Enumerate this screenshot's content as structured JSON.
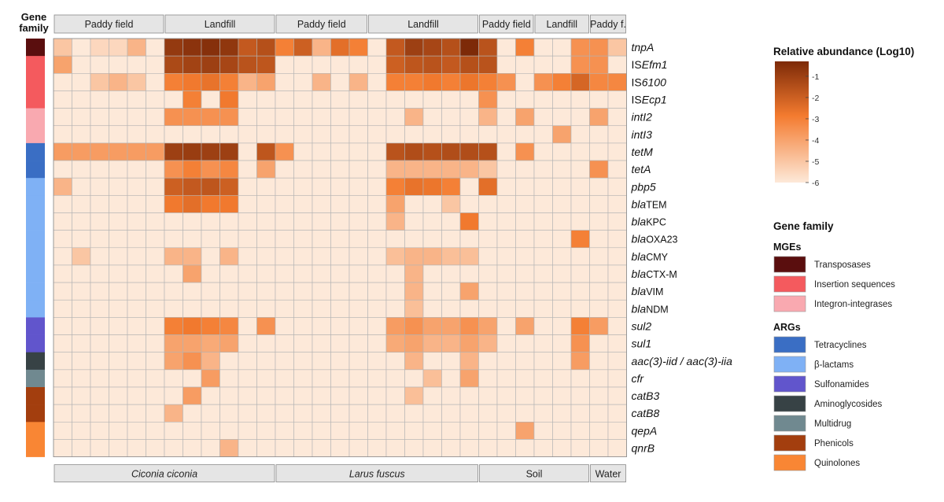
{
  "chart_data": {
    "type": "heatmap",
    "gene_family_header": [
      "Gene",
      "family"
    ],
    "habitats": [
      {
        "label": "Paddy field",
        "span": 6
      },
      {
        "label": "Landfill",
        "span": 6
      },
      {
        "label": "Paddy field",
        "span": 5
      },
      {
        "label": "Landfill",
        "span": 6
      },
      {
        "label": "Paddy field",
        "span": 3
      },
      {
        "label": "Landfill",
        "span": 3
      },
      {
        "label": "Paddy f.",
        "span": 2
      }
    ],
    "species": [
      {
        "label": "Ciconia ciconia",
        "span": 12,
        "italic": true
      },
      {
        "label": "Larus fuscus",
        "span": 11,
        "italic": true
      },
      {
        "label": "Soil",
        "span": 6,
        "italic": false
      },
      {
        "label": "Water",
        "span": 2,
        "italic": false
      }
    ],
    "rows": [
      {
        "segments": [
          [
            "tnpA",
            true
          ]
        ],
        "family": "Transposases",
        "values": [
          -5,
          -6,
          -5.5,
          -5.5,
          -4.5,
          -6,
          -0.8,
          -0.6,
          -0.5,
          -0.7,
          -1.8,
          -1.5,
          -3,
          -2,
          -4.5,
          -2.5,
          -3,
          -6,
          -1.8,
          -1,
          -1.2,
          -1.5,
          -0.3,
          -1.6,
          -6,
          -3,
          -6,
          -6,
          -3.5,
          -3.5,
          -5
        ]
      },
      {
        "segments": [
          [
            "IS",
            false
          ],
          [
            "Efm1",
            true
          ]
        ],
        "family": "Insertion sequences",
        "values": [
          -4,
          -6,
          -6,
          -6,
          -6,
          -6,
          -1.3,
          -1.1,
          -1,
          -1.2,
          -1.6,
          -1.7,
          -6,
          -6,
          -6,
          -6,
          -6,
          -6,
          -2,
          -1.7,
          -1.6,
          -1.8,
          -1.5,
          -1.6,
          -6,
          -6,
          -6,
          -6,
          -3.5,
          -3.5,
          -6
        ]
      },
      {
        "segments": [
          [
            "IS",
            false
          ],
          [
            "6100",
            true
          ]
        ],
        "family": "Insertion sequences",
        "values": [
          -6,
          -6,
          -5,
          -4.5,
          -5,
          -6,
          -3,
          -2.8,
          -2.6,
          -3,
          -4.5,
          -4,
          -6,
          -6,
          -4.5,
          -6,
          -4.5,
          -6,
          -3,
          -3,
          -2.8,
          -3,
          -2.7,
          -3,
          -3.5,
          -6,
          -3.5,
          -3,
          -2.2,
          -3.2,
          -3.2
        ]
      },
      {
        "segments": [
          [
            "IS",
            false
          ],
          [
            "Ecp1",
            true
          ]
        ],
        "family": "Insertion sequences",
        "values": [
          -6,
          -6,
          -6,
          -6,
          -6,
          -6,
          -6,
          -3,
          -6,
          -2.8,
          -6,
          -6,
          -6,
          -6,
          -6,
          -6,
          -6,
          -6,
          -6,
          -6,
          -6,
          -6,
          -6,
          -3.5,
          -6,
          -6,
          -6,
          -6,
          -6,
          -6,
          -6
        ]
      },
      {
        "segments": [
          [
            "intI2",
            true
          ]
        ],
        "family": "Integron-integrases",
        "values": [
          -6,
          -6,
          -6,
          -6,
          -6,
          -6,
          -3.5,
          -3.5,
          -3.5,
          -3.5,
          -6,
          -6,
          -6,
          -6,
          -6,
          -6,
          -6,
          -6,
          -6,
          -4.5,
          -6,
          -6,
          -6,
          -4.5,
          -6,
          -4,
          -6,
          -6,
          -6,
          -4,
          -6
        ]
      },
      {
        "segments": [
          [
            "intI3",
            true
          ]
        ],
        "family": "Integron-integrases",
        "values": [
          -6,
          -6,
          -6,
          -6,
          -6,
          -6,
          -6,
          -6,
          -6,
          -6,
          -6,
          -6,
          -6,
          -6,
          -6,
          -6,
          -6,
          -6,
          -6,
          -6,
          -6,
          -6,
          -6,
          -6,
          -6,
          -6,
          -6,
          -4,
          -6,
          -6,
          -6
        ]
      },
      {
        "segments": [
          [
            "tetM",
            true
          ]
        ],
        "family": "Tetracyclines",
        "values": [
          -3.8,
          -3.8,
          -3.8,
          -3.8,
          -3.8,
          -3.8,
          -1,
          -0.9,
          -1,
          -1,
          -6,
          -1.7,
          -3.5,
          -6,
          -6,
          -6,
          -6,
          -6,
          -1.6,
          -1.4,
          -1.5,
          -1.4,
          -1.4,
          -1.5,
          -6,
          -3.5,
          -6,
          -6,
          -6,
          -6,
          -6
        ]
      },
      {
        "segments": [
          [
            "tetA",
            true
          ]
        ],
        "family": "Tetracyclines",
        "values": [
          -6,
          -6,
          -6,
          -6,
          -6,
          -6,
          -3.5,
          -3,
          -3.5,
          -3.2,
          -6,
          -4,
          -6,
          -6,
          -6,
          -6,
          -6,
          -6,
          -4.5,
          -4.5,
          -4.5,
          -4.5,
          -4.5,
          -5,
          -6,
          -6,
          -6,
          -6,
          -6,
          -3.5,
          -6
        ]
      },
      {
        "segments": [
          [
            "pbp5",
            true
          ]
        ],
        "family": "β-lactams",
        "values": [
          -4.5,
          -6,
          -6,
          -6,
          -6,
          -6,
          -2,
          -1.8,
          -1.7,
          -2,
          -6,
          -6,
          -6,
          -6,
          -6,
          -6,
          -6,
          -6,
          -3,
          -2.6,
          -2.7,
          -3,
          -6,
          -2.5,
          -6,
          -6,
          -6,
          -6,
          -6,
          -6,
          -6
        ]
      },
      {
        "segments": [
          [
            "bla",
            true
          ],
          [
            "TEM",
            false
          ]
        ],
        "family": "β-lactams",
        "values": [
          -6,
          -6,
          -6,
          -6,
          -6,
          -6,
          -2.8,
          -2.5,
          -2.8,
          -2.8,
          -6,
          -6,
          -6,
          -6,
          -6,
          -6,
          -6,
          -6,
          -4,
          -6,
          -6,
          -5,
          -6,
          -6,
          -6,
          -6,
          -6,
          -6,
          -6,
          -6,
          -6
        ]
      },
      {
        "segments": [
          [
            "bla",
            true
          ],
          [
            "KPC",
            false
          ]
        ],
        "family": "β-lactams",
        "values": [
          -6,
          -6,
          -6,
          -6,
          -6,
          -6,
          -6,
          -6,
          -6,
          -6,
          -6,
          -6,
          -6,
          -6,
          -6,
          -6,
          -6,
          -6,
          -4.5,
          -6,
          -6,
          -6,
          -2.8,
          -6,
          -6,
          -6,
          -6,
          -6,
          -6,
          -6,
          -6
        ]
      },
      {
        "segments": [
          [
            "bla",
            true
          ],
          [
            "OXA23",
            false
          ]
        ],
        "family": "β-lactams",
        "values": [
          -6,
          -6,
          -6,
          -6,
          -6,
          -6,
          -6,
          -6,
          -6,
          -6,
          -6,
          -6,
          -6,
          -6,
          -6,
          -6,
          -6,
          -6,
          -6,
          -6,
          -6,
          -6,
          -6,
          -6,
          -6,
          -6,
          -6,
          -6,
          -3,
          -6,
          -6
        ]
      },
      {
        "segments": [
          [
            "bla",
            true
          ],
          [
            "CMY",
            false
          ]
        ],
        "family": "β-lactams",
        "values": [
          -6,
          -5,
          -6,
          -6,
          -6,
          -6,
          -4.5,
          -4.5,
          -6,
          -4.5,
          -6,
          -6,
          -6,
          -6,
          -6,
          -6,
          -6,
          -6,
          -4.8,
          -4.5,
          -4.5,
          -4.8,
          -4.8,
          -6,
          -6,
          -6,
          -6,
          -6,
          -6,
          -6,
          -6
        ]
      },
      {
        "segments": [
          [
            "bla",
            true
          ],
          [
            "CTX-M",
            false
          ]
        ],
        "family": "β-lactams",
        "values": [
          -6,
          -6,
          -6,
          -6,
          -6,
          -6,
          -6,
          -4,
          -6,
          -6,
          -6,
          -6,
          -6,
          -6,
          -6,
          -6,
          -6,
          -6,
          -6,
          -4.5,
          -6,
          -6,
          -6,
          -6,
          -6,
          -6,
          -6,
          -6,
          -6,
          -6,
          -6
        ]
      },
      {
        "segments": [
          [
            "bla",
            true
          ],
          [
            "VIM",
            false
          ]
        ],
        "family": "β-lactams",
        "values": [
          -6,
          -6,
          -6,
          -6,
          -6,
          -6,
          -6,
          -6,
          -6,
          -6,
          -6,
          -6,
          -6,
          -6,
          -6,
          -6,
          -6,
          -6,
          -6,
          -4.5,
          -6,
          -6,
          -4,
          -6,
          -6,
          -6,
          -6,
          -6,
          -6,
          -6,
          -6
        ]
      },
      {
        "segments": [
          [
            "bla",
            true
          ],
          [
            "NDM",
            false
          ]
        ],
        "family": "β-lactams",
        "values": [
          -6,
          -6,
          -6,
          -6,
          -6,
          -6,
          -6,
          -6,
          -6,
          -6,
          -6,
          -6,
          -6,
          -6,
          -6,
          -6,
          -6,
          -6,
          -6,
          -4.8,
          -6,
          -6,
          -6,
          -6,
          -6,
          -6,
          -6,
          -6,
          -6,
          -6,
          -6
        ]
      },
      {
        "segments": [
          [
            "sul2",
            true
          ]
        ],
        "family": "Sulfonamides",
        "values": [
          -6,
          -6,
          -6,
          -6,
          -6,
          -6,
          -3,
          -2.8,
          -3,
          -3.2,
          -6,
          -3.5,
          -6,
          -6,
          -6,
          -6,
          -6,
          -6,
          -3.8,
          -3.5,
          -4,
          -4,
          -3.5,
          -4,
          -6,
          -4,
          -6,
          -6,
          -3,
          -3.8,
          -6
        ]
      },
      {
        "segments": [
          [
            "sul1",
            true
          ]
        ],
        "family": "Sulfonamides",
        "values": [
          -6,
          -6,
          -6,
          -6,
          -6,
          -6,
          -4,
          -4,
          -4.2,
          -4,
          -6,
          -6,
          -6,
          -6,
          -6,
          -6,
          -6,
          -6,
          -4.2,
          -4,
          -4.5,
          -4.5,
          -4,
          -4.5,
          -6,
          -6,
          -6,
          -6,
          -3.5,
          -6,
          -6
        ]
      },
      {
        "segments": [
          [
            "aac(3)-iid / aac(3)-iia",
            true
          ]
        ],
        "family": "Aminoglycosides",
        "values": [
          -6,
          -6,
          -6,
          -6,
          -6,
          -6,
          -4,
          -3.5,
          -4.5,
          -6,
          -6,
          -6,
          -6,
          -6,
          -6,
          -6,
          -6,
          -6,
          -6,
          -4.5,
          -6,
          -6,
          -4.5,
          -6,
          -6,
          -6,
          -6,
          -6,
          -3.8,
          -6,
          -6
        ]
      },
      {
        "segments": [
          [
            "cfr",
            true
          ]
        ],
        "family": "Multidrug",
        "values": [
          -6,
          -6,
          -6,
          -6,
          -6,
          -6,
          -6,
          -6,
          -3.8,
          -6,
          -6,
          -6,
          -6,
          -6,
          -6,
          -6,
          -6,
          -6,
          -6,
          -6,
          -4.8,
          -6,
          -4,
          -6,
          -6,
          -6,
          -6,
          -6,
          -6,
          -6,
          -6
        ]
      },
      {
        "segments": [
          [
            "catB3",
            true
          ]
        ],
        "family": "Phenicols",
        "values": [
          -6,
          -6,
          -6,
          -6,
          -6,
          -6,
          -6,
          -3.8,
          -6,
          -6,
          -6,
          -6,
          -6,
          -6,
          -6,
          -6,
          -6,
          -6,
          -6,
          -4.8,
          -6,
          -6,
          -6,
          -6,
          -6,
          -6,
          -6,
          -6,
          -6,
          -6,
          -6
        ]
      },
      {
        "segments": [
          [
            "catB8",
            true
          ]
        ],
        "family": "Phenicols",
        "values": [
          -6,
          -6,
          -6,
          -6,
          -6,
          -6,
          -4.5,
          -6,
          -6,
          -6,
          -6,
          -6,
          -6,
          -6,
          -6,
          -6,
          -6,
          -6,
          -6,
          -6,
          -6,
          -6,
          -6,
          -6,
          -6,
          -6,
          -6,
          -6,
          -6,
          -6,
          -6
        ]
      },
      {
        "segments": [
          [
            "qepA",
            true
          ]
        ],
        "family": "Quinolones",
        "values": [
          -6,
          -6,
          -6,
          -6,
          -6,
          -6,
          -6,
          -6,
          -6,
          -6,
          -6,
          -6,
          -6,
          -6,
          -6,
          -6,
          -6,
          -6,
          -6,
          -6,
          -6,
          -6,
          -6,
          -6,
          -6,
          -4,
          -6,
          -6,
          -6,
          -6,
          -6
        ]
      },
      {
        "segments": [
          [
            "qnrB",
            true
          ]
        ],
        "family": "Quinolones",
        "values": [
          -6,
          -6,
          -6,
          -6,
          -6,
          -6,
          -6,
          -6,
          -6,
          -4.5,
          -6,
          -6,
          -6,
          -6,
          -6,
          -6,
          -6,
          -6,
          -6,
          -6,
          -6,
          -6,
          -6,
          -6,
          -6,
          -6,
          -6,
          -6,
          -6,
          -6,
          -6
        ]
      }
    ],
    "color_scale": {
      "title": "Relative abundance (Log10)",
      "min": -6,
      "max": -0.3,
      "ticks": [
        -1,
        -2,
        -3,
        -4,
        -5,
        -6
      ],
      "tick_labels": [
        "-1",
        "-2",
        "-3",
        "-4",
        "-5",
        "-6"
      ],
      "low_color": "#fde9d9",
      "mid_color": "#f47b2f",
      "high_color": "#7d2a08"
    },
    "legend": {
      "title": "Gene family",
      "groups": [
        {
          "name": "MGEs",
          "items": [
            {
              "label": "Transposases",
              "color": "#5a0e0e"
            },
            {
              "label": "Insertion sequences",
              "color": "#f45a5e"
            },
            {
              "label": "Integron-integrases",
              "color": "#f9a9b0"
            }
          ]
        },
        {
          "name": "ARGs",
          "items": [
            {
              "label": "Tetracyclines",
              "color": "#3a6ec4"
            },
            {
              "label": "β-lactams",
              "color": "#7fb1f5"
            },
            {
              "label": "Sulfonamides",
              "color": "#6155cc"
            },
            {
              "label": "Aminoglycosides",
              "color": "#374245"
            },
            {
              "label": "Multidrug",
              "color": "#708990"
            },
            {
              "label": "Phenicols",
              "color": "#a33e0e"
            },
            {
              "label": "Quinolones",
              "color": "#f98634"
            }
          ]
        }
      ]
    }
  }
}
